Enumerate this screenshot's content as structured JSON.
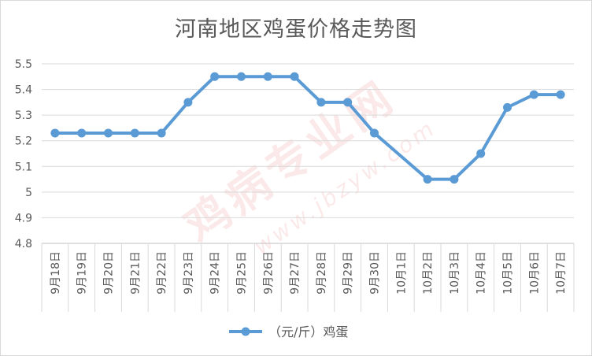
{
  "chart_data": {
    "type": "line",
    "title": "河南地区鸡蛋价格走势图",
    "categories": [
      "9月18日",
      "9月19日",
      "9月20日",
      "9月21日",
      "9月22日",
      "9月23日",
      "9月24日",
      "9月25日",
      "9月26日",
      "9月27日",
      "9月28日",
      "9月29日",
      "9月30日",
      "10月1日",
      "10月2日",
      "10月3日",
      "10月4日",
      "10月5日",
      "10月6日",
      "10月7日"
    ],
    "series": [
      {
        "name": "（元/斤）鸡蛋",
        "values": [
          5.23,
          5.23,
          5.23,
          5.23,
          5.23,
          5.35,
          5.45,
          5.45,
          5.45,
          5.45,
          5.35,
          5.35,
          5.23,
          null,
          5.05,
          5.05,
          5.15,
          5.33,
          5.38,
          5.38
        ],
        "color": "#5b9bd5"
      }
    ],
    "ylim": [
      4.8,
      5.5
    ],
    "yticks": [
      "4.8",
      "4.9",
      "5",
      "5.1",
      "5.2",
      "5.3",
      "5.4",
      "5.5"
    ],
    "grid": true,
    "legend_position": "bottom",
    "xlabel": "",
    "ylabel": ""
  },
  "watermark": {
    "main": "鸡病专业网",
    "sub": "www.jbzyw.com"
  }
}
